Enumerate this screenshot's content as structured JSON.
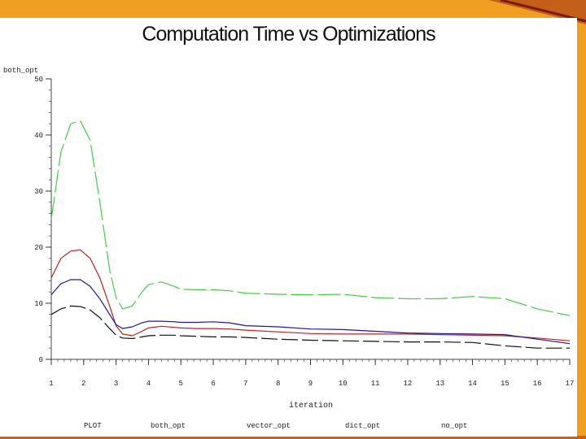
{
  "colors": {
    "accent": "#f0a020",
    "dark_accent": "#a02818"
  },
  "chart_data": {
    "type": "line",
    "title": "Computation Time vs Optimizations",
    "xlabel": "iteration",
    "ylabel": "both_opt",
    "xlim": [
      1,
      17
    ],
    "ylim": [
      0,
      50
    ],
    "x_ticks": [
      "1",
      "2",
      "3",
      "4",
      "5",
      "6",
      "7",
      "8",
      "9",
      "10",
      "11",
      "12",
      "13",
      "14",
      "15",
      "16",
      "17"
    ],
    "y_ticks": [
      "0",
      "10",
      "20",
      "30",
      "40",
      "50"
    ],
    "legend_label": "PLOT",
    "legend_placement": "bottom",
    "legend": [
      "both_opt",
      "vector_opt",
      "dict_opt",
      "no_opt"
    ],
    "grid": false,
    "x": [
      1,
      1.3,
      1.6,
      1.9,
      2.2,
      2.5,
      2.8,
      3,
      3.2,
      3.5,
      3.8,
      4,
      4.4,
      4.8,
      5,
      5.5,
      6,
      6.5,
      7,
      8,
      9,
      10,
      11,
      12,
      13,
      14,
      15,
      16,
      17
    ],
    "series": [
      {
        "color": "#44cc44",
        "dash": "28 5",
        "values": [
          25,
          37,
          42,
          42.5,
          39,
          28,
          16,
          11,
          9,
          9.5,
          12,
          13.3,
          13.8,
          13,
          12.5,
          12.4,
          12.4,
          12.2,
          11.8,
          11.6,
          11.5,
          11.6,
          11,
          10.8,
          10.8,
          11.2,
          10.8,
          9,
          7.8
        ]
      },
      {
        "color": "#bb2222",
        "dash": "none",
        "values": [
          14.5,
          18,
          19.3,
          19.5,
          18,
          14.5,
          9.5,
          6,
          4.5,
          4.2,
          5,
          5.6,
          5.9,
          5.7,
          5.6,
          5.5,
          5.5,
          5.4,
          5.2,
          4.9,
          4.6,
          4.5,
          4.5,
          4.5,
          4.4,
          4.3,
          4.2,
          3.8,
          3.3
        ]
      },
      {
        "color": "#1a1a99",
        "dash": "none",
        "values": [
          11.5,
          13.5,
          14.2,
          14.2,
          13,
          10.8,
          8,
          6.2,
          5.5,
          5.8,
          6.5,
          6.8,
          6.8,
          6.7,
          6.6,
          6.6,
          6.7,
          6.5,
          6,
          5.8,
          5.4,
          5.3,
          5,
          4.7,
          4.6,
          4.5,
          4.4,
          3.6,
          2.8
        ]
      },
      {
        "color": "#111111",
        "dash": "20 5",
        "values": [
          8,
          9,
          9.5,
          9.4,
          8.8,
          7.4,
          5.5,
          4.3,
          3.8,
          3.7,
          4,
          4.2,
          4.3,
          4.3,
          4.2,
          4.1,
          4,
          4,
          3.9,
          3.6,
          3.4,
          3.3,
          3.2,
          3.1,
          3.1,
          3,
          2.4,
          2,
          2
        ]
      }
    ]
  }
}
